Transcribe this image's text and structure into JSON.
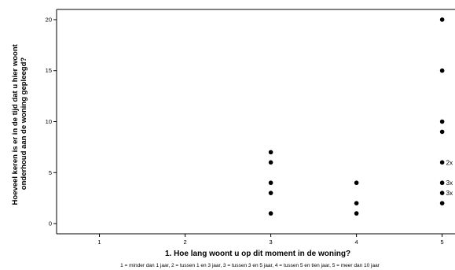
{
  "chart_data": {
    "type": "scatter",
    "title": "",
    "xlabel": "1. Hoe lang woont u op dit moment in de woning?",
    "ylabel_lines": [
      "Hoeveel keren is er in de tijd dat u hier woont",
      "onderhoud aan de woning gepleegd?"
    ],
    "footnote": "1 = minder dan 1 jaar, 2 = tussen 1 en 3 jaar, 3 = tussen 3 en 5 jaar, 4 = tussen 5 en tien jaar, 5 = meer dan 10 jaar",
    "xlim": [
      0.5,
      5.15
    ],
    "ylim": [
      -1,
      21
    ],
    "x_ticks": [
      1,
      2,
      3,
      4,
      5
    ],
    "x_tick_labels": [
      "1",
      "2",
      "3",
      "4",
      "5"
    ],
    "y_ticks": [
      0,
      5,
      10,
      15,
      20
    ],
    "y_tick_labels": [
      "0",
      "5",
      "10",
      "15",
      "20"
    ],
    "grid": false,
    "points": [
      {
        "x": 3,
        "y": 7
      },
      {
        "x": 3,
        "y": 6
      },
      {
        "x": 3,
        "y": 4
      },
      {
        "x": 3,
        "y": 3
      },
      {
        "x": 3,
        "y": 1
      },
      {
        "x": 4,
        "y": 4
      },
      {
        "x": 4,
        "y": 2
      },
      {
        "x": 4,
        "y": 1
      },
      {
        "x": 5,
        "y": 20
      },
      {
        "x": 5,
        "y": 15
      },
      {
        "x": 5,
        "y": 10
      },
      {
        "x": 5,
        "y": 9
      },
      {
        "x": 5,
        "y": 6
      },
      {
        "x": 5,
        "y": 4
      },
      {
        "x": 5,
        "y": 3
      },
      {
        "x": 5,
        "y": 2
      }
    ],
    "annotations": [
      {
        "x": 5,
        "y": 6,
        "text": "2x"
      },
      {
        "x": 5,
        "y": 4,
        "text": "3x"
      },
      {
        "x": 5,
        "y": 3,
        "text": "3x"
      }
    ],
    "colors": {
      "points": "#000000",
      "axes": "#000000",
      "background": "#ffffff"
    }
  }
}
